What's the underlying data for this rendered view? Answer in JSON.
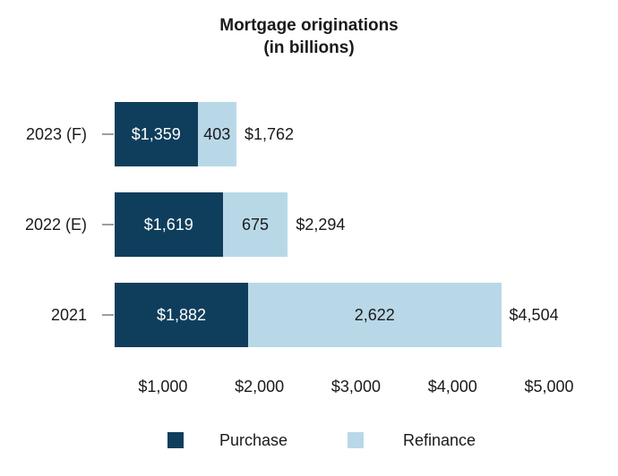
{
  "chart_data": {
    "type": "bar",
    "orientation": "horizontal",
    "stacked": true,
    "title": "Mortgage originations",
    "subtitle": "(in billions)",
    "categories": [
      "2023 (F)",
      "2022 (E)",
      "2021"
    ],
    "series": [
      {
        "name": "Purchase",
        "color": "#0f3e5c",
        "values": [
          1359,
          1619,
          1882
        ],
        "value_labels": [
          "$1,359",
          "$1,619",
          "$1,882"
        ],
        "label_color": "#ffffff"
      },
      {
        "name": "Refinance",
        "color": "#b8d8e8",
        "values": [
          403,
          675,
          2622
        ],
        "value_labels": [
          "403",
          "675",
          "2,622"
        ],
        "label_color": "#1a1a1a"
      }
    ],
    "totals": [
      1762,
      2294,
      4504
    ],
    "total_labels": [
      "$1,762",
      "$2,294",
      "$4,504"
    ],
    "x_axis": {
      "min": 500,
      "max": 5000,
      "ticks": [
        1000,
        2000,
        3000,
        4000,
        5000
      ],
      "tick_labels": [
        "$1,000",
        "$2,000",
        "$3,000",
        "$4,000",
        "$5,000"
      ],
      "gridlines": false
    },
    "legend": {
      "position": "bottom",
      "items": [
        {
          "label": "Purchase",
          "color": "#0f3e5c"
        },
        {
          "label": "Refinance",
          "color": "#b8d8e8"
        }
      ]
    },
    "colors": {
      "tick_mark": "#9e9e9e",
      "text": "#1a1a1a",
      "background": "#ffffff"
    }
  }
}
